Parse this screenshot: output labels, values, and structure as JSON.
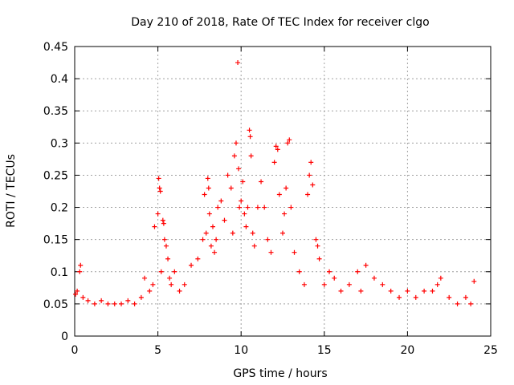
{
  "chart_data": {
    "type": "scatter",
    "title": "Day 210 of 2018, Rate Of TEC Index for receiver clgo",
    "xlabel": "GPS time / hours",
    "ylabel": "ROTI / TECUs",
    "xlim": [
      0,
      25
    ],
    "ylim": [
      0,
      0.45
    ],
    "x_ticks": [
      0,
      5,
      10,
      15,
      20,
      25
    ],
    "x_tick_labels": [
      "0",
      "5",
      "10",
      "15",
      "20",
      "25"
    ],
    "y_ticks": [
      0,
      0.05,
      0.1,
      0.15,
      0.2,
      0.25,
      0.3,
      0.35,
      0.4,
      0.45
    ],
    "y_tick_labels": [
      "0",
      "0.05",
      "0.1",
      "0.15",
      "0.2",
      "0.25",
      "0.3",
      "0.35",
      "0.4",
      "0.45"
    ],
    "grid": true,
    "marker": "+",
    "series": [
      {
        "name": "ROTI",
        "color": "#ff0000",
        "x": [
          0.05,
          0.15,
          0.3,
          0.35,
          0.5,
          0.8,
          1.2,
          1.6,
          2.0,
          2.4,
          2.8,
          3.2,
          3.6,
          4.0,
          4.2,
          4.5,
          4.7,
          4.8,
          5.0,
          5.05,
          5.1,
          5.15,
          5.2,
          5.3,
          5.35,
          5.4,
          5.5,
          5.6,
          5.7,
          5.8,
          6.0,
          6.3,
          6.6,
          7.0,
          7.4,
          7.7,
          7.8,
          7.9,
          8.0,
          8.05,
          8.1,
          8.2,
          8.3,
          8.4,
          8.5,
          8.6,
          8.8,
          9.0,
          9.2,
          9.4,
          9.5,
          9.6,
          9.7,
          9.8,
          9.85,
          9.9,
          10.0,
          10.1,
          10.2,
          10.3,
          10.4,
          10.5,
          10.55,
          10.6,
          10.7,
          10.8,
          11.0,
          11.2,
          11.4,
          11.6,
          11.8,
          12.0,
          12.1,
          12.2,
          12.3,
          12.5,
          12.6,
          12.7,
          12.8,
          12.9,
          13.0,
          13.2,
          13.5,
          13.8,
          14.0,
          14.1,
          14.2,
          14.3,
          14.5,
          14.6,
          14.7,
          15.0,
          15.3,
          15.6,
          16.0,
          16.5,
          17.0,
          17.2,
          17.5,
          18.0,
          18.5,
          19.0,
          19.5,
          20.0,
          20.5,
          21.0,
          21.5,
          21.8,
          22.0,
          22.5,
          23.0,
          23.5,
          23.8,
          24.0
        ],
        "y": [
          0.065,
          0.07,
          0.1,
          0.11,
          0.06,
          0.055,
          0.05,
          0.055,
          0.05,
          0.05,
          0.05,
          0.055,
          0.05,
          0.06,
          0.09,
          0.07,
          0.08,
          0.17,
          0.19,
          0.245,
          0.23,
          0.225,
          0.1,
          0.18,
          0.175,
          0.15,
          0.14,
          0.12,
          0.09,
          0.08,
          0.1,
          0.07,
          0.08,
          0.11,
          0.12,
          0.15,
          0.22,
          0.16,
          0.245,
          0.23,
          0.19,
          0.14,
          0.17,
          0.13,
          0.15,
          0.2,
          0.21,
          0.18,
          0.25,
          0.23,
          0.16,
          0.28,
          0.3,
          0.425,
          0.26,
          0.2,
          0.21,
          0.24,
          0.19,
          0.17,
          0.2,
          0.32,
          0.31,
          0.28,
          0.16,
          0.14,
          0.2,
          0.24,
          0.2,
          0.15,
          0.13,
          0.27,
          0.295,
          0.29,
          0.22,
          0.16,
          0.19,
          0.23,
          0.3,
          0.305,
          0.2,
          0.13,
          0.1,
          0.08,
          0.22,
          0.25,
          0.27,
          0.235,
          0.15,
          0.14,
          0.12,
          0.08,
          0.1,
          0.09,
          0.07,
          0.08,
          0.1,
          0.07,
          0.11,
          0.09,
          0.08,
          0.07,
          0.06,
          0.07,
          0.06,
          0.07,
          0.07,
          0.08,
          0.09,
          0.06,
          0.05,
          0.06,
          0.05,
          0.085
        ]
      }
    ]
  }
}
